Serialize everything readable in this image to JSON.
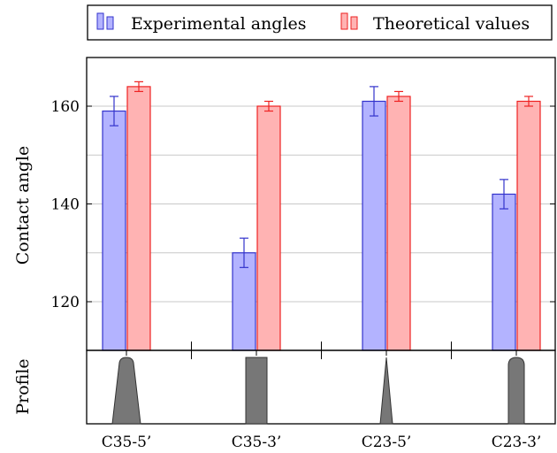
{
  "chart_data": {
    "type": "bar",
    "title": "",
    "xlabel": "",
    "ylabel": "Contact angle",
    "profile_label": "Profile",
    "ylim": [
      110,
      170
    ],
    "yticks": [
      120,
      140,
      160
    ],
    "grid": true,
    "legend_position": "top",
    "categories": [
      "C35-5’",
      "C35-3’",
      "C23-5’",
      "C23-3’"
    ],
    "series": [
      {
        "name": "Experimental angles",
        "values": [
          159,
          130,
          161,
          142
        ],
        "errors": [
          3,
          3,
          3,
          3
        ],
        "fill": "#b3b3ff",
        "stroke": "#3333cc"
      },
      {
        "name": "Theoretical values",
        "values": [
          164,
          160,
          162,
          161
        ],
        "errors": [
          1,
          1,
          1,
          1
        ],
        "fill": "#ffb3b3",
        "stroke": "#ee2222"
      }
    ],
    "profiles": [
      "tapered-rounded-top",
      "rectangle",
      "cone",
      "rounded-top-pillar"
    ],
    "profile_color": "#777777"
  }
}
